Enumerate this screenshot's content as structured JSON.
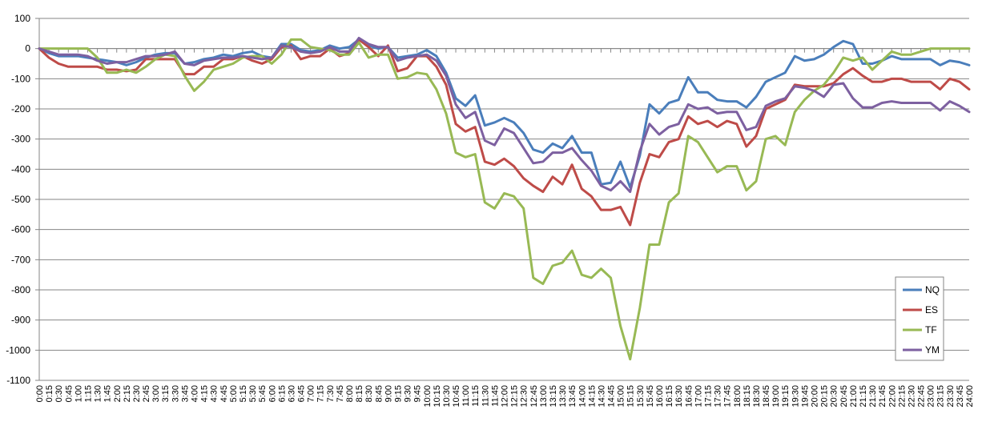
{
  "chart_data": {
    "type": "line",
    "title": "",
    "xlabel": "",
    "ylabel": "",
    "ylim": [
      -1100,
      100
    ],
    "yticks": [
      100,
      0,
      -100,
      -200,
      -300,
      -400,
      -500,
      -600,
      -700,
      -800,
      -900,
      -1000,
      -1100
    ],
    "grid": "horizontal",
    "legend_position": "right",
    "x": [
      "0:00",
      "0:15",
      "0:30",
      "0:45",
      "1:00",
      "1:15",
      "1:30",
      "1:45",
      "2:00",
      "2:15",
      "2:30",
      "2:45",
      "3:00",
      "3:15",
      "3:30",
      "3:45",
      "4:00",
      "4:15",
      "4:30",
      "4:45",
      "5:00",
      "5:15",
      "5:30",
      "5:45",
      "6:00",
      "6:15",
      "6:30",
      "6:45",
      "7:00",
      "7:15",
      "7:30",
      "7:45",
      "8:00",
      "8:15",
      "8:30",
      "8:45",
      "9:00",
      "9:15",
      "9:30",
      "9:45",
      "10:00",
      "10:15",
      "10:30",
      "10:45",
      "11:00",
      "11:15",
      "11:30",
      "11:45",
      "12:00",
      "12:15",
      "12:30",
      "12:45",
      "13:00",
      "13:15",
      "13:30",
      "13:45",
      "14:00",
      "14:15",
      "14:30",
      "14:45",
      "15:00",
      "15:15",
      "15:30",
      "15:45",
      "16:00",
      "16:15",
      "16:30",
      "16:45",
      "17:00",
      "17:15",
      "17:30",
      "17:45",
      "18:00",
      "18:15",
      "18:30",
      "18:45",
      "19:00",
      "19:15",
      "19:30",
      "19:45",
      "20:00",
      "20:15",
      "20:30",
      "20:45",
      "21:00",
      "21:15",
      "21:30",
      "21:45",
      "22:00",
      "22:15",
      "22:30",
      "22:45",
      "23:00",
      "23:15",
      "23:30",
      "23:45",
      "24:00"
    ],
    "series": [
      {
        "name": "NQ",
        "color": "#4a7ebb",
        "values": [
          0,
          -15,
          -25,
          -25,
          -25,
          -30,
          -35,
          -40,
          -45,
          -55,
          -45,
          -30,
          -20,
          -15,
          -15,
          -50,
          -45,
          -35,
          -30,
          -20,
          -25,
          -15,
          -10,
          -25,
          -30,
          15,
          15,
          -5,
          -10,
          -5,
          10,
          0,
          5,
          30,
          10,
          0,
          5,
          -30,
          -25,
          -20,
          -5,
          -25,
          -80,
          -165,
          -190,
          -155,
          -255,
          -245,
          -230,
          -245,
          -280,
          -335,
          -345,
          -315,
          -330,
          -290,
          -345,
          -345,
          -450,
          -445,
          -375,
          -460,
          -355,
          -185,
          -215,
          -180,
          -170,
          -95,
          -145,
          -145,
          -170,
          -175,
          -175,
          -195,
          -160,
          -110,
          -95,
          -80,
          -25,
          -40,
          -35,
          -20,
          5,
          25,
          15,
          -50,
          -50,
          -40,
          -25,
          -35,
          -35,
          -35,
          -35,
          -55,
          -40,
          -45,
          -55
        ]
      },
      {
        "name": "ES",
        "color": "#be4b48",
        "values": [
          0,
          -30,
          -50,
          -60,
          -60,
          -60,
          -60,
          -70,
          -70,
          -75,
          -70,
          -35,
          -35,
          -35,
          -35,
          -85,
          -85,
          -60,
          -60,
          -35,
          -35,
          -25,
          -40,
          -50,
          -35,
          5,
          10,
          -35,
          -25,
          -25,
          0,
          -25,
          -15,
          30,
          5,
          -25,
          10,
          -75,
          -65,
          -25,
          -25,
          -60,
          -120,
          -250,
          -275,
          -260,
          -375,
          -385,
          -365,
          -390,
          -430,
          -455,
          -475,
          -425,
          -450,
          -385,
          -465,
          -490,
          -535,
          -535,
          -525,
          -585,
          -445,
          -350,
          -360,
          -310,
          -300,
          -225,
          -250,
          -240,
          -260,
          -240,
          -250,
          -325,
          -290,
          -200,
          -185,
          -170,
          -120,
          -125,
          -125,
          -125,
          -115,
          -85,
          -65,
          -90,
          -110,
          -110,
          -100,
          -100,
          -110,
          -110,
          -110,
          -135,
          -100,
          -110,
          -135
        ]
      },
      {
        "name": "TF",
        "color": "#98b954",
        "values": [
          0,
          0,
          0,
          0,
          0,
          0,
          -30,
          -80,
          -80,
          -70,
          -80,
          -60,
          -35,
          -20,
          -25,
          -90,
          -140,
          -110,
          -70,
          -60,
          -50,
          -30,
          -25,
          -25,
          -50,
          -20,
          30,
          30,
          5,
          0,
          -5,
          -20,
          -20,
          20,
          -30,
          -20,
          -20,
          -100,
          -95,
          -80,
          -85,
          -135,
          -215,
          -345,
          -360,
          -350,
          -510,
          -530,
          -480,
          -490,
          -530,
          -760,
          -780,
          -720,
          -710,
          -670,
          -750,
          -760,
          -730,
          -760,
          -920,
          -1030,
          -860,
          -650,
          -650,
          -510,
          -480,
          -290,
          -310,
          -360,
          -410,
          -390,
          -390,
          -470,
          -440,
          -300,
          -290,
          -320,
          -210,
          -170,
          -140,
          -120,
          -80,
          -30,
          -40,
          -30,
          -70,
          -40,
          -10,
          -20,
          -20,
          -10,
          0,
          0,
          0,
          0,
          0
        ]
      },
      {
        "name": "YM",
        "color": "#7d60a0",
        "values": [
          0,
          -10,
          -20,
          -20,
          -20,
          -25,
          -40,
          -50,
          -45,
          -45,
          -35,
          -25,
          -25,
          -20,
          -10,
          -50,
          -55,
          -40,
          -35,
          -30,
          -30,
          -25,
          -30,
          -35,
          -30,
          10,
          5,
          -10,
          -15,
          -10,
          5,
          -10,
          -10,
          35,
          15,
          5,
          5,
          -40,
          -30,
          -25,
          -20,
          -40,
          -90,
          -185,
          -230,
          -210,
          -305,
          -320,
          -265,
          -280,
          -330,
          -380,
          -375,
          -345,
          -345,
          -330,
          -370,
          -405,
          -455,
          -470,
          -440,
          -475,
          -340,
          -250,
          -285,
          -260,
          -250,
          -185,
          -200,
          -195,
          -215,
          -210,
          -210,
          -270,
          -260,
          -190,
          -175,
          -165,
          -125,
          -130,
          -140,
          -160,
          -120,
          -115,
          -165,
          -195,
          -195,
          -180,
          -175,
          -180,
          -180,
          -180,
          -180,
          -205,
          -175,
          -190,
          -210
        ]
      }
    ]
  }
}
